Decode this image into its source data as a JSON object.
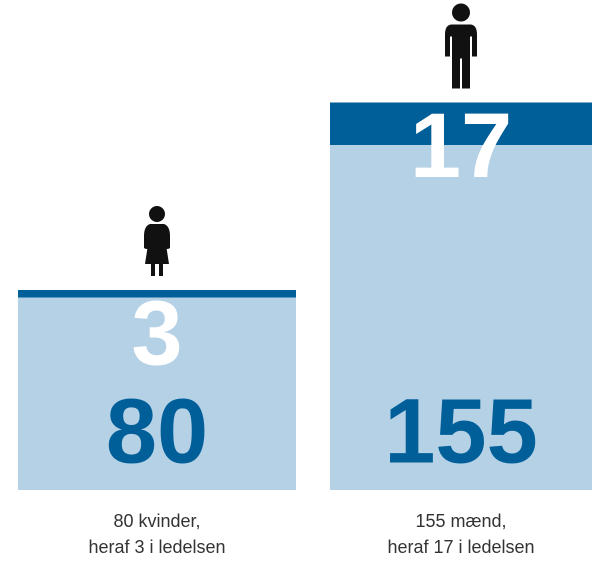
{
  "chart_data": {
    "type": "bar",
    "bars": [
      {
        "total": 80,
        "management": 3,
        "caption": [
          "80 kvinder,",
          "heraf 3 i ledelsen"
        ]
      },
      {
        "total": 155,
        "management": 17,
        "caption": [
          "155 mænd,",
          "heraf 17 i ledelsen"
        ]
      }
    ],
    "colors": {
      "total": "#b5d1e6",
      "management": "#005f99"
    }
  }
}
